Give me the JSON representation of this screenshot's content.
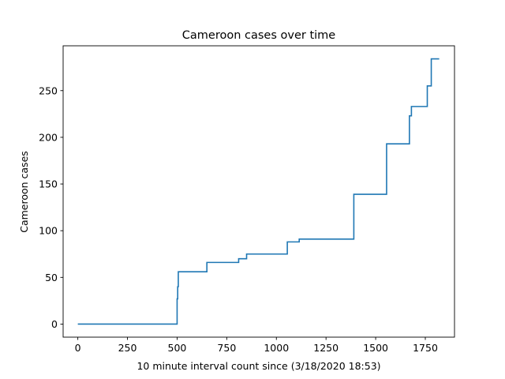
{
  "chart_data": {
    "type": "line",
    "title": "Cameroon cases over time",
    "xlabel": "10 minute interval count since (3/18/2020 18:53)",
    "ylabel": "Cameroon cases",
    "xlim": [
      -74,
      1897
    ],
    "ylim": [
      -14,
      298
    ],
    "xticks": [
      0,
      250,
      500,
      750,
      1000,
      1250,
      1500,
      1750
    ],
    "yticks": [
      0,
      50,
      100,
      150,
      200,
      250
    ],
    "grid": false,
    "legend": "none",
    "line_color": "#1f77b4",
    "series": [
      {
        "step": "post",
        "x": [
          0,
          500,
          503,
          506,
          650,
          810,
          850,
          1055,
          1115,
          1390,
          1555,
          1670,
          1680,
          1760,
          1780,
          1820
        ],
        "y": [
          0,
          27,
          40,
          56,
          66,
          70,
          75,
          88,
          91,
          139,
          193,
          223,
          233,
          255,
          284,
          284
        ]
      }
    ]
  }
}
